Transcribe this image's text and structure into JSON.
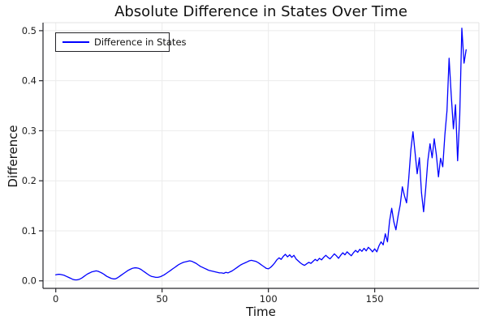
{
  "chart_data": {
    "type": "line",
    "title": "Absolute Difference in States Over Time",
    "xlabel": "Time",
    "ylabel": "Difference",
    "legend_position": "top-left",
    "grid": true,
    "background": "#ffffff",
    "grid_color": "#ebebeb",
    "frame_dark_color": "#26262b",
    "frame_light_color": "#e3e3e3",
    "tick_label_color": "#1c1c1c",
    "xlim": [
      -6,
      199
    ],
    "ylim": [
      -0.015,
      0.516
    ],
    "x_ticks": [
      0,
      50,
      100,
      150
    ],
    "x_tick_labels": [
      "0",
      "50",
      "100",
      "150"
    ],
    "y_ticks": [
      0.0,
      0.1,
      0.2,
      0.3,
      0.4,
      0.5
    ],
    "y_tick_labels": [
      "0.0",
      "0.1",
      "0.2",
      "0.3",
      "0.4",
      "0.5"
    ],
    "series": [
      {
        "name": "Difference in States",
        "color": "#0000ff",
        "x_start": 0,
        "x_step": 1,
        "values": [
          0.012,
          0.013,
          0.013,
          0.012,
          0.011,
          0.009,
          0.007,
          0.005,
          0.003,
          0.002,
          0.002,
          0.003,
          0.005,
          0.008,
          0.011,
          0.014,
          0.016,
          0.018,
          0.019,
          0.02,
          0.019,
          0.017,
          0.015,
          0.012,
          0.009,
          0.007,
          0.005,
          0.004,
          0.004,
          0.006,
          0.009,
          0.012,
          0.015,
          0.018,
          0.021,
          0.023,
          0.025,
          0.026,
          0.026,
          0.025,
          0.023,
          0.02,
          0.017,
          0.014,
          0.011,
          0.009,
          0.008,
          0.007,
          0.007,
          0.008,
          0.01,
          0.012,
          0.015,
          0.018,
          0.021,
          0.024,
          0.027,
          0.03,
          0.033,
          0.035,
          0.037,
          0.038,
          0.039,
          0.04,
          0.039,
          0.037,
          0.035,
          0.032,
          0.029,
          0.027,
          0.025,
          0.023,
          0.021,
          0.02,
          0.019,
          0.018,
          0.017,
          0.016,
          0.016,
          0.015,
          0.017,
          0.016,
          0.018,
          0.02,
          0.023,
          0.026,
          0.029,
          0.032,
          0.034,
          0.036,
          0.038,
          0.04,
          0.041,
          0.04,
          0.039,
          0.037,
          0.034,
          0.031,
          0.028,
          0.025,
          0.024,
          0.027,
          0.031,
          0.036,
          0.042,
          0.046,
          0.043,
          0.049,
          0.053,
          0.048,
          0.052,
          0.047,
          0.051,
          0.044,
          0.04,
          0.036,
          0.033,
          0.031,
          0.034,
          0.037,
          0.035,
          0.039,
          0.043,
          0.04,
          0.045,
          0.042,
          0.047,
          0.051,
          0.047,
          0.044,
          0.049,
          0.054,
          0.05,
          0.045,
          0.051,
          0.056,
          0.052,
          0.058,
          0.054,
          0.05,
          0.056,
          0.061,
          0.057,
          0.063,
          0.059,
          0.065,
          0.06,
          0.067,
          0.063,
          0.058,
          0.064,
          0.058,
          0.07,
          0.078,
          0.072,
          0.094,
          0.078,
          0.12,
          0.145,
          0.118,
          0.102,
          0.13,
          0.152,
          0.188,
          0.17,
          0.156,
          0.205,
          0.262,
          0.298,
          0.256,
          0.214,
          0.246,
          0.176,
          0.138,
          0.185,
          0.24,
          0.274,
          0.246,
          0.284,
          0.252,
          0.208,
          0.245,
          0.228,
          0.292,
          0.34,
          0.445,
          0.372,
          0.304,
          0.352,
          0.24,
          0.33,
          0.505,
          0.435,
          0.462
        ]
      }
    ]
  }
}
